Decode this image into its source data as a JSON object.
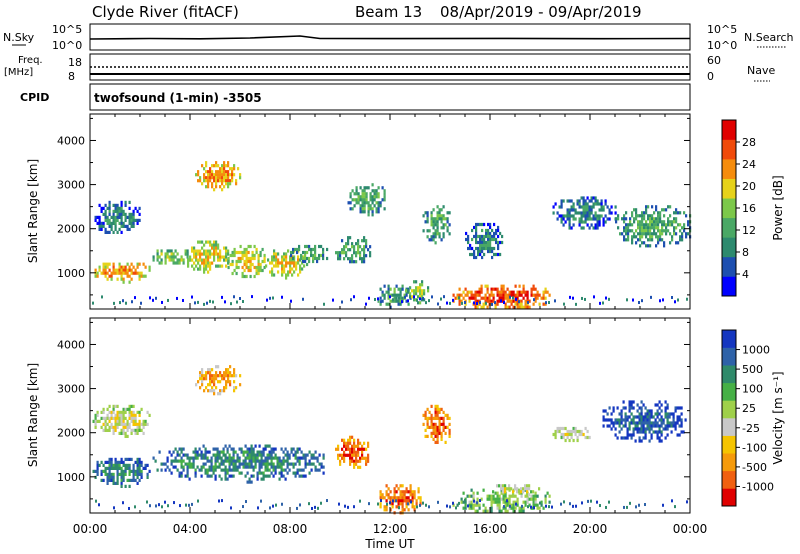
{
  "header": {
    "station": "Clyde River (fitACF)",
    "beam": "Beam 13",
    "date_range": "08/Apr/2019 - 09/Apr/2019"
  },
  "status_panels": {
    "nsky": {
      "label": "N.Sky",
      "ticks": [
        "10^5",
        "10^0"
      ]
    },
    "nsearch": {
      "label": "N.Search",
      "ticks": [
        "10^5",
        "10^0"
      ]
    },
    "freq": {
      "label_line1": "Freq.",
      "label_line2": "[MHz]",
      "ticks": [
        "18",
        "8"
      ]
    },
    "nave": {
      "label": "Nave",
      "ticks": [
        "60",
        "0"
      ]
    },
    "cpid": {
      "label": "CPID",
      "mode": "twofsound (1-min) -3505"
    }
  },
  "colors": {
    "frame": "#000000",
    "power_scale": [
      "#0000ff",
      "#1d4fb0",
      "#2d8a6e",
      "#4aa865",
      "#7cc84a",
      "#e6d21a",
      "#f58c0c",
      "#f04a0a",
      "#e00000"
    ],
    "velocity_scale": [
      "#1436c0",
      "#2e62a8",
      "#2f8a6a",
      "#46b046",
      "#9fd04a",
      "#c8c8c8",
      "#f5c400",
      "#f59a0a",
      "#f06010",
      "#e00000"
    ]
  },
  "chart_data": [
    {
      "type": "heatmap",
      "panel": "power",
      "ylabel": "Slant Range [km]",
      "yticks": [
        "4000",
        "3000",
        "2000",
        "1000"
      ],
      "ylim": [
        180,
        4600
      ],
      "xlim_hours": [
        0,
        24
      ],
      "colorbar": {
        "title": "Power [dB]",
        "ticks": [
          "28",
          "24",
          "20",
          "16",
          "12",
          "8",
          "4"
        ]
      },
      "echo_regions": [
        {
          "t0": 0.1,
          "t1": 2.4,
          "r0": 800,
          "r1": 1300,
          "level": 6
        },
        {
          "t0": 0.1,
          "t1": 2.0,
          "r0": 1900,
          "r1": 2700,
          "level": 2
        },
        {
          "t0": 2.5,
          "t1": 4.0,
          "r0": 1200,
          "r1": 1600,
          "level": 4
        },
        {
          "t0": 3.8,
          "t1": 5.5,
          "r0": 1000,
          "r1": 1800,
          "level": 5
        },
        {
          "t0": 4.2,
          "t1": 6.0,
          "r0": 2900,
          "r1": 3600,
          "level": 6
        },
        {
          "t0": 5.5,
          "t1": 7.0,
          "r0": 900,
          "r1": 1700,
          "level": 5
        },
        {
          "t0": 7.0,
          "t1": 8.6,
          "r0": 900,
          "r1": 1600,
          "level": 5
        },
        {
          "t0": 8.0,
          "t1": 9.5,
          "r0": 1200,
          "r1": 1700,
          "level": 3
        },
        {
          "t0": 9.8,
          "t1": 11.2,
          "r0": 1200,
          "r1": 1900,
          "level": 3
        },
        {
          "t0": 10.3,
          "t1": 11.8,
          "r0": 2300,
          "r1": 3100,
          "level": 3
        },
        {
          "t0": 11.5,
          "t1": 12.8,
          "r0": 200,
          "r1": 800,
          "level": 3
        },
        {
          "t0": 12.6,
          "t1": 13.5,
          "r0": 300,
          "r1": 900,
          "level": 4
        },
        {
          "t0": 13.3,
          "t1": 14.4,
          "r0": 1700,
          "r1": 2600,
          "level": 3
        },
        {
          "t0": 14.5,
          "t1": 18.4,
          "r0": 200,
          "r1": 800,
          "level": 7
        },
        {
          "t0": 15.0,
          "t1": 16.5,
          "r0": 1300,
          "r1": 2200,
          "level": 2
        },
        {
          "t0": 18.5,
          "t1": 21.0,
          "r0": 2000,
          "r1": 2800,
          "level": 2
        },
        {
          "t0": 21.0,
          "t1": 24.0,
          "r0": 1600,
          "r1": 2600,
          "level": 3
        }
      ]
    },
    {
      "type": "heatmap",
      "panel": "velocity",
      "ylabel": "Slant Range [km]",
      "xlabel": "Time UT",
      "xticks": [
        "00:00",
        "04:00",
        "08:00",
        "12:00",
        "16:00",
        "20:00",
        "00:00"
      ],
      "yticks": [
        "4000",
        "3000",
        "2000",
        "1000"
      ],
      "ylim": [
        180,
        4600
      ],
      "xlim_hours": [
        0,
        24
      ],
      "colorbar": {
        "title": "Velocity [m s⁻¹]",
        "ticks": [
          "1000",
          "500",
          "100",
          "25",
          "-25",
          "-100",
          "-500",
          "-1000"
        ]
      },
      "echo_regions": [
        {
          "t0": 0.1,
          "t1": 2.4,
          "r0": 800,
          "r1": 1500,
          "level": 2
        },
        {
          "t0": 0.1,
          "t1": 2.4,
          "r0": 1900,
          "r1": 2700,
          "level": 5
        },
        {
          "t0": 2.5,
          "t1": 9.5,
          "r0": 900,
          "r1": 1800,
          "level": 2
        },
        {
          "t0": 4.2,
          "t1": 6.0,
          "r0": 2900,
          "r1": 3600,
          "level": 7
        },
        {
          "t0": 9.8,
          "t1": 11.2,
          "r0": 1200,
          "r1": 2000,
          "level": 8
        },
        {
          "t0": 11.5,
          "t1": 13.2,
          "r0": 200,
          "r1": 900,
          "level": 8
        },
        {
          "t0": 13.3,
          "t1": 14.4,
          "r0": 1700,
          "r1": 2700,
          "level": 8
        },
        {
          "t0": 14.5,
          "t1": 18.4,
          "r0": 200,
          "r1": 800,
          "level": 4
        },
        {
          "t0": 16.0,
          "t1": 18.0,
          "r0": 600,
          "r1": 900,
          "level": 5
        },
        {
          "t0": 18.5,
          "t1": 20.0,
          "r0": 1800,
          "r1": 2200,
          "level": 5
        },
        {
          "t0": 20.5,
          "t1": 23.8,
          "r0": 1800,
          "r1": 2800,
          "level": 1
        }
      ]
    }
  ]
}
